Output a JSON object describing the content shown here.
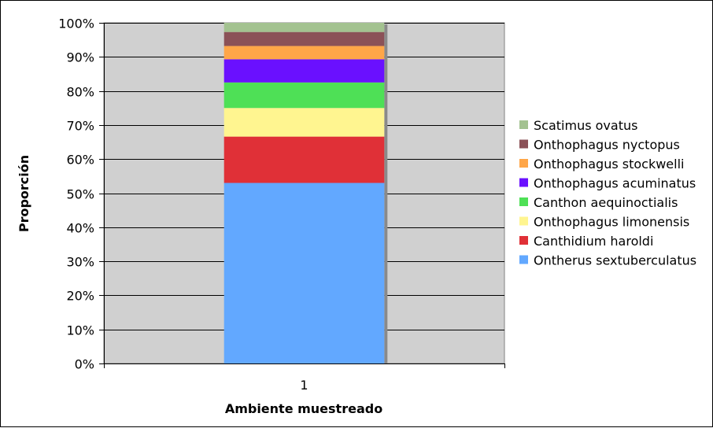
{
  "chart_data": {
    "type": "bar",
    "stacked": true,
    "normalized": true,
    "categories": [
      "1"
    ],
    "xlabel": "Ambiente muestreado",
    "ylabel": "Proporción",
    "ylim": [
      0,
      100
    ],
    "yticks": [
      "0%",
      "10%",
      "20%",
      "30%",
      "40%",
      "50%",
      "60%",
      "70%",
      "80%",
      "90%",
      "100%"
    ],
    "grid": true,
    "legend_position": "right",
    "series": [
      {
        "name": "Ontherus sextuberculatus",
        "values": [
          53.0
        ],
        "color": "#62A8FF"
      },
      {
        "name": "Canthidium haroldi",
        "values": [
          13.6
        ],
        "color": "#E03037"
      },
      {
        "name": "Onthophagus limonensis",
        "values": [
          8.4
        ],
        "color": "#FFF590"
      },
      {
        "name": "Canthon aequinoctialis",
        "values": [
          7.5
        ],
        "color": "#4EE056"
      },
      {
        "name": "Onthophagus acuminatus",
        "values": [
          6.8
        ],
        "color": "#6A10FF"
      },
      {
        "name": "Onthophagus stockwelli",
        "values": [
          3.9
        ],
        "color": "#FFA648"
      },
      {
        "name": "Onthophagus nyctopus",
        "values": [
          4.1
        ],
        "color": "#8B5157"
      },
      {
        "name": "Scatimus ovatus",
        "values": [
          2.7
        ],
        "color": "#A3C290"
      }
    ]
  },
  "colors": {
    "plot_background": "#D0D0D0",
    "gridline": "#000000",
    "bar_shadow": "#8A8A8A"
  }
}
